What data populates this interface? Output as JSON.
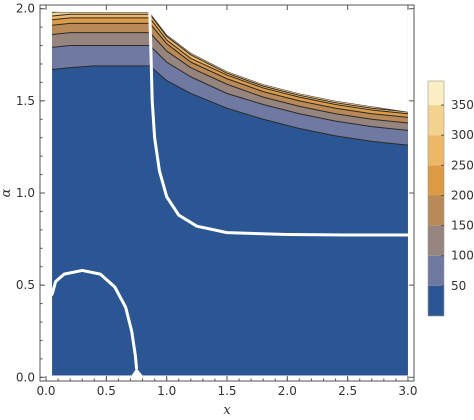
{
  "chart_data": {
    "type": "contour",
    "title": "",
    "xlabel": "x",
    "ylabel": "α",
    "xlim": [
      0,
      3
    ],
    "ylim": [
      0,
      2
    ],
    "x_ticks": [
      "0.0",
      "0.5",
      "1.0",
      "1.5",
      "2.0",
      "2.5",
      "3.0"
    ],
    "y_ticks": [
      "0.0",
      "0.5",
      "1.0",
      "1.5",
      "2.0"
    ],
    "legend_position": "right",
    "legend": {
      "labels": [
        "50",
        "100",
        "150",
        "200",
        "250",
        "300",
        "350"
      ],
      "range": [
        0,
        390
      ],
      "bands": [
        {
          "from": 0,
          "to": 50,
          "color": "#2b5693"
        },
        {
          "from": 50,
          "to": 100,
          "color": "#6f79a2"
        },
        {
          "from": 100,
          "to": 150,
          "color": "#96847f"
        },
        {
          "from": 150,
          "to": 200,
          "color": "#b98a57"
        },
        {
          "from": 200,
          "to": 250,
          "color": "#dd9b47"
        },
        {
          "from": 250,
          "to": 300,
          "color": "#ecb767"
        },
        {
          "from": 300,
          "to": 350,
          "color": "#f3d18e"
        },
        {
          "from": 350,
          "to": 400,
          "color": "#fbeec2"
        }
      ]
    },
    "upper_region": {
      "x": [
        0.05,
        0.2,
        0.4,
        0.6,
        0.8,
        0.86,
        1.0,
        1.2,
        1.5,
        1.8,
        2.1,
        2.4,
        2.7,
        3.0
      ],
      "top": [
        1.98,
        1.98,
        1.98,
        1.98,
        1.98,
        1.98,
        1.86,
        1.76,
        1.66,
        1.59,
        1.54,
        1.5,
        1.47,
        1.44
      ],
      "level_boundaries": [
        {
          "value": 50,
          "y": [
            1.67,
            1.68,
            1.69,
            1.69,
            1.69,
            1.69,
            1.61,
            1.54,
            1.46,
            1.4,
            1.35,
            1.31,
            1.28,
            1.26
          ]
        },
        {
          "value": 100,
          "y": [
            1.79,
            1.8,
            1.8,
            1.8,
            1.8,
            1.8,
            1.71,
            1.63,
            1.54,
            1.48,
            1.43,
            1.39,
            1.36,
            1.34
          ]
        },
        {
          "value": 150,
          "y": [
            1.86,
            1.87,
            1.87,
            1.87,
            1.87,
            1.87,
            1.77,
            1.68,
            1.59,
            1.52,
            1.47,
            1.43,
            1.4,
            1.38
          ]
        },
        {
          "value": 200,
          "y": [
            1.91,
            1.92,
            1.92,
            1.92,
            1.92,
            1.92,
            1.81,
            1.71,
            1.62,
            1.55,
            1.5,
            1.46,
            1.43,
            1.41
          ]
        },
        {
          "value": 250,
          "y": [
            1.94,
            1.95,
            1.95,
            1.95,
            1.95,
            1.95,
            1.83,
            1.73,
            1.64,
            1.57,
            1.52,
            1.48,
            1.45,
            1.43
          ]
        },
        {
          "value": 300,
          "y": [
            1.96,
            1.97,
            1.97,
            1.97,
            1.97,
            1.97,
            1.85,
            1.75,
            1.65,
            1.58,
            1.53,
            1.49,
            1.46,
            1.44
          ]
        }
      ]
    },
    "zero_curves": [
      {
        "name": "",
        "points": [
          [
            0.86,
            1.98
          ],
          [
            0.87,
            1.75
          ],
          [
            0.88,
            1.5
          ],
          [
            0.9,
            1.3
          ],
          [
            0.94,
            1.12
          ],
          [
            1.0,
            0.98
          ],
          [
            1.1,
            0.88
          ],
          [
            1.25,
            0.82
          ],
          [
            1.5,
            0.785
          ],
          [
            2.0,
            0.775
          ],
          [
            2.5,
            0.772
          ],
          [
            3.0,
            0.772
          ]
        ]
      },
      {
        "name": "",
        "points": [
          [
            0.05,
            0.45
          ],
          [
            0.08,
            0.52
          ],
          [
            0.15,
            0.56
          ],
          [
            0.3,
            0.58
          ],
          [
            0.45,
            0.56
          ],
          [
            0.57,
            0.49
          ],
          [
            0.66,
            0.38
          ],
          [
            0.71,
            0.25
          ],
          [
            0.74,
            0.12
          ],
          [
            0.75,
            0.05
          ]
        ]
      }
    ],
    "notch": {
      "apex": [
        0.75,
        0.05
      ],
      "left": [
        0.71,
        0.0
      ],
      "right": [
        0.8,
        0.0
      ]
    }
  }
}
